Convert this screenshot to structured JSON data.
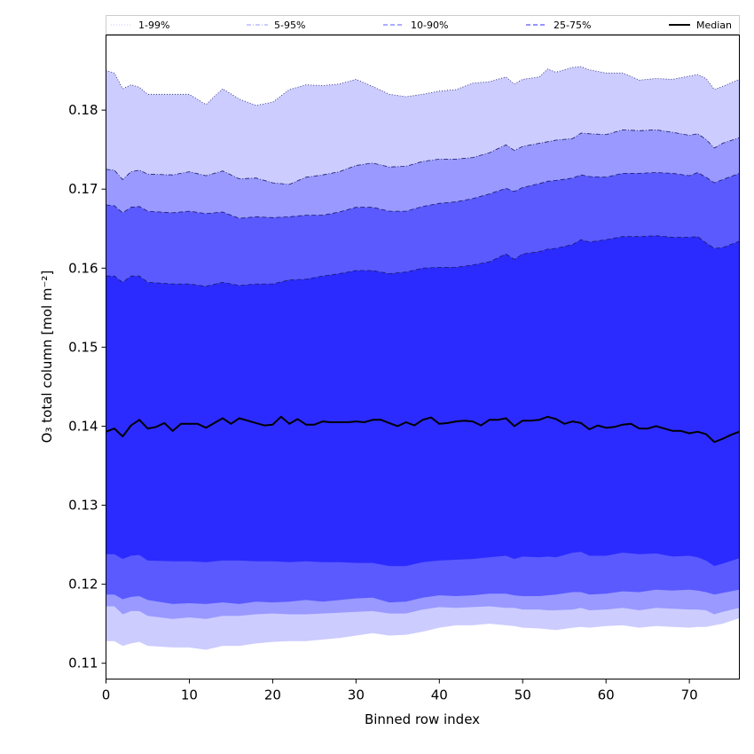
{
  "chart_data": {
    "type": "area",
    "xlabel": "Binned row index",
    "ylabel": "O₃ total column [mol m⁻²]",
    "xlim": [
      0,
      76
    ],
    "ylim": [
      0.108,
      0.1895
    ],
    "xticks": [
      0,
      10,
      20,
      30,
      40,
      50,
      60,
      70
    ],
    "yticks": [
      0.11,
      0.12,
      0.13,
      0.14,
      0.15,
      0.16,
      0.17,
      0.18
    ],
    "ytick_labels": [
      "0.11",
      "0.12",
      "0.13",
      "0.14",
      "0.15",
      "0.16",
      "0.17",
      "0.18"
    ],
    "legend_position": "top (above plot)",
    "x_knots": [
      0,
      1,
      2,
      3,
      4,
      5,
      8,
      10,
      12,
      14,
      16,
      18,
      20,
      22,
      24,
      26,
      28,
      30,
      32,
      34,
      36,
      38,
      40,
      42,
      44,
      46,
      48,
      49,
      50,
      52,
      53,
      54,
      56,
      57,
      58,
      60,
      62,
      64,
      66,
      68,
      70,
      71,
      72,
      73,
      74,
      76
    ],
    "bands": [
      {
        "name": "1-99%",
        "color": "#ccccff",
        "line_style": "dotted",
        "upper": [
          0.185,
          0.1847,
          0.1827,
          0.1832,
          0.1829,
          0.182,
          0.182,
          0.182,
          0.1807,
          0.1827,
          0.1814,
          0.1806,
          0.181,
          0.1826,
          0.1832,
          0.1831,
          0.1833,
          0.1839,
          0.183,
          0.182,
          0.1817,
          0.182,
          0.1824,
          0.1826,
          0.1834,
          0.1836,
          0.1842,
          0.1833,
          0.1839,
          0.1842,
          0.1852,
          0.1848,
          0.1854,
          0.1855,
          0.1851,
          0.1847,
          0.1847,
          0.1838,
          0.184,
          0.1839,
          0.1843,
          0.1845,
          0.184,
          0.1826,
          0.183,
          0.1839
        ],
        "lower": [
          0.1128,
          0.1128,
          0.1122,
          0.1125,
          0.1127,
          0.1122,
          0.112,
          0.112,
          0.1117,
          0.1122,
          0.1122,
          0.1125,
          0.1127,
          0.1128,
          0.1128,
          0.113,
          0.1132,
          0.1135,
          0.1138,
          0.1135,
          0.1136,
          0.114,
          0.1145,
          0.1148,
          0.1148,
          0.115,
          0.1148,
          0.1147,
          0.1145,
          0.1144,
          0.1143,
          0.1142,
          0.1145,
          0.1146,
          0.1145,
          0.1147,
          0.1148,
          0.1145,
          0.1147,
          0.1146,
          0.1145,
          0.1146,
          0.1146,
          0.1148,
          0.115,
          0.1157
        ]
      },
      {
        "name": "5-95%",
        "color": "#9999ff",
        "line_style": "dashdot",
        "upper": [
          0.1725,
          0.1724,
          0.1712,
          0.1722,
          0.1724,
          0.1719,
          0.1718,
          0.1722,
          0.1717,
          0.1723,
          0.1713,
          0.1714,
          0.1708,
          0.1706,
          0.1715,
          0.1718,
          0.1722,
          0.173,
          0.1733,
          0.1728,
          0.1729,
          0.1735,
          0.1738,
          0.1738,
          0.174,
          0.1746,
          0.1756,
          0.1749,
          0.1754,
          0.1758,
          0.176,
          0.1762,
          0.1764,
          0.1771,
          0.177,
          0.1769,
          0.1775,
          0.1774,
          0.1775,
          0.1772,
          0.1768,
          0.177,
          0.1763,
          0.1752,
          0.1758,
          0.1765
        ],
        "lower": [
          0.1172,
          0.1172,
          0.1162,
          0.1166,
          0.1166,
          0.116,
          0.1156,
          0.1158,
          0.1156,
          0.116,
          0.116,
          0.1162,
          0.1163,
          0.1162,
          0.1162,
          0.1163,
          0.1164,
          0.1165,
          0.1166,
          0.1163,
          0.1163,
          0.1168,
          0.1171,
          0.117,
          0.1171,
          0.1172,
          0.117,
          0.117,
          0.1168,
          0.1168,
          0.1167,
          0.1167,
          0.1168,
          0.117,
          0.1167,
          0.1168,
          0.117,
          0.1167,
          0.117,
          0.1169,
          0.1168,
          0.1168,
          0.1167,
          0.1162,
          0.1165,
          0.117
        ]
      },
      {
        "name": "10-90%",
        "color": "#5a5aff",
        "line_style": "dashed",
        "upper": [
          0.168,
          0.1679,
          0.167,
          0.1677,
          0.1678,
          0.1672,
          0.167,
          0.1672,
          0.1669,
          0.1671,
          0.1663,
          0.1665,
          0.1664,
          0.1665,
          0.1667,
          0.1667,
          0.1671,
          0.1677,
          0.1677,
          0.1672,
          0.1672,
          0.1678,
          0.1682,
          0.1684,
          0.1688,
          0.1694,
          0.1701,
          0.1697,
          0.1702,
          0.1707,
          0.171,
          0.1711,
          0.1714,
          0.1718,
          0.1716,
          0.1715,
          0.172,
          0.172,
          0.1721,
          0.172,
          0.1717,
          0.1721,
          0.1715,
          0.1708,
          0.1712,
          0.172
        ],
        "lower": [
          0.1187,
          0.1187,
          0.1181,
          0.1184,
          0.1185,
          0.118,
          0.1175,
          0.1176,
          0.1175,
          0.1177,
          0.1175,
          0.1178,
          0.1177,
          0.1178,
          0.118,
          0.1178,
          0.118,
          0.1182,
          0.1183,
          0.1177,
          0.1178,
          0.1183,
          0.1186,
          0.1185,
          0.1186,
          0.1188,
          0.1188,
          0.1186,
          0.1185,
          0.1185,
          0.1186,
          0.1187,
          0.119,
          0.119,
          0.1187,
          0.1188,
          0.1191,
          0.119,
          0.1193,
          0.1192,
          0.1193,
          0.1192,
          0.119,
          0.1187,
          0.1189,
          0.1193
        ]
      },
      {
        "name": "25-75%",
        "color": "#2b2bff",
        "line_style": "dashed",
        "upper": [
          0.159,
          0.159,
          0.1582,
          0.159,
          0.159,
          0.1582,
          0.158,
          0.158,
          0.1577,
          0.1582,
          0.1578,
          0.158,
          0.158,
          0.1585,
          0.1586,
          0.159,
          0.1593,
          0.1597,
          0.1597,
          0.1593,
          0.1595,
          0.16,
          0.1601,
          0.1601,
          0.1604,
          0.1608,
          0.1618,
          0.1611,
          0.1618,
          0.1621,
          0.1624,
          0.1625,
          0.163,
          0.1636,
          0.1633,
          0.1636,
          0.164,
          0.164,
          0.1641,
          0.1639,
          0.1639,
          0.164,
          0.1632,
          0.1625,
          0.1626,
          0.1634
        ],
        "lower": [
          0.1238,
          0.1238,
          0.1232,
          0.1236,
          0.1237,
          0.123,
          0.1229,
          0.1229,
          0.1228,
          0.123,
          0.123,
          0.1229,
          0.1229,
          0.1228,
          0.1229,
          0.1228,
          0.1228,
          0.1227,
          0.1227,
          0.1223,
          0.1223,
          0.1228,
          0.123,
          0.1231,
          0.1232,
          0.1234,
          0.1236,
          0.1232,
          0.1235,
          0.1234,
          0.1235,
          0.1234,
          0.124,
          0.1241,
          0.1236,
          0.1236,
          0.124,
          0.1238,
          0.1239,
          0.1235,
          0.1236,
          0.1234,
          0.123,
          0.1223,
          0.1226,
          0.1233
        ]
      }
    ],
    "median": {
      "name": "Median",
      "color": "#000000",
      "x": [
        0,
        1,
        2,
        3,
        4,
        5,
        6,
        7,
        8,
        9,
        10,
        11,
        12,
        13,
        14,
        15,
        16,
        17,
        18,
        19,
        20,
        21,
        22,
        23,
        24,
        25,
        26,
        27,
        28,
        29,
        30,
        31,
        32,
        33,
        34,
        35,
        36,
        37,
        38,
        39,
        40,
        41,
        42,
        43,
        44,
        45,
        46,
        47,
        48,
        49,
        50,
        51,
        52,
        53,
        54,
        55,
        56,
        57,
        58,
        59,
        60,
        61,
        62,
        63,
        64,
        65,
        66,
        67,
        68,
        69,
        70,
        71,
        72,
        73,
        74,
        75,
        76
      ],
      "values": [
        0.1393,
        0.1397,
        0.1387,
        0.1401,
        0.1408,
        0.1397,
        0.1399,
        0.1404,
        0.1394,
        0.1403,
        0.1403,
        0.1403,
        0.1398,
        0.1404,
        0.141,
        0.1403,
        0.141,
        0.1407,
        0.1404,
        0.1401,
        0.1402,
        0.1412,
        0.1403,
        0.1409,
        0.1402,
        0.1402,
        0.1406,
        0.1405,
        0.1405,
        0.1405,
        0.1406,
        0.1405,
        0.1408,
        0.1408,
        0.1404,
        0.14,
        0.1405,
        0.1401,
        0.1408,
        0.1411,
        0.1403,
        0.1404,
        0.1406,
        0.1407,
        0.1406,
        0.1401,
        0.1408,
        0.1408,
        0.141,
        0.14,
        0.1407,
        0.1407,
        0.1408,
        0.1412,
        0.1409,
        0.1403,
        0.1406,
        0.1404,
        0.1396,
        0.1401,
        0.1398,
        0.1399,
        0.1402,
        0.1403,
        0.1397,
        0.1397,
        0.14,
        0.1397,
        0.1394,
        0.1394,
        0.1391,
        0.1393,
        0.139,
        0.138,
        0.1384,
        0.1389,
        0.1393
      ]
    }
  }
}
